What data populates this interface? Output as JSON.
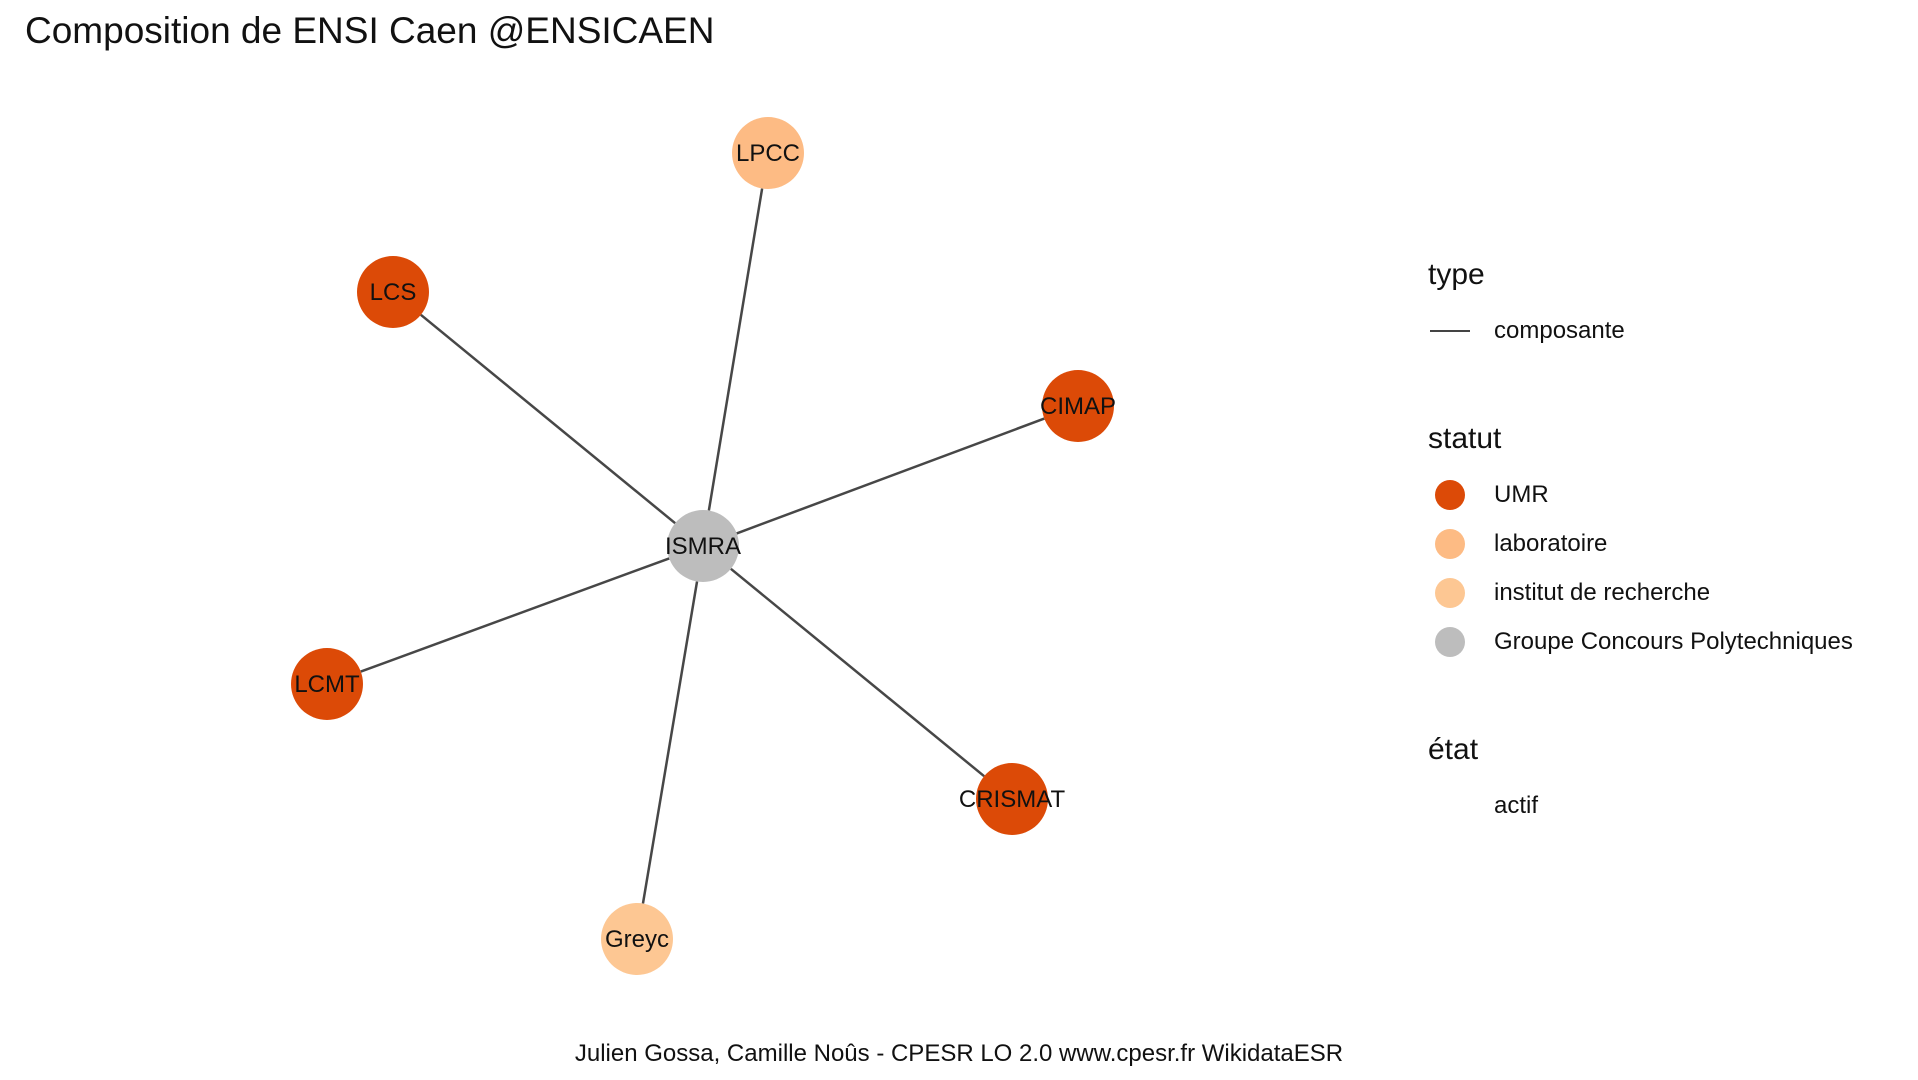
{
  "title": "Composition de ENSI Caen @ENSICAEN",
  "caption": "Julien Gossa, Camille Noûs - CPESR LO 2.0 www.cpesr.fr WikidataESR",
  "colors": {
    "UMR": "#dc4a07",
    "laboratoire": "#fdbb84",
    "institut de recherche": "#fdc793",
    "Groupe Concours Polytechniques": "#bdbdbd",
    "edge": "#474747"
  },
  "graph": {
    "nodes": [
      {
        "id": "ISMRA",
        "label": "ISMRA",
        "statut": "Groupe Concours Polytechniques"
      },
      {
        "id": "LPCC",
        "label": "LPCC",
        "statut": "laboratoire"
      },
      {
        "id": "LCS",
        "label": "LCS",
        "statut": "UMR"
      },
      {
        "id": "CIMAP",
        "label": "CIMAP",
        "statut": "UMR"
      },
      {
        "id": "LCMT",
        "label": "LCMT",
        "statut": "UMR"
      },
      {
        "id": "CRISMAT",
        "label": "CRISMAT",
        "statut": "UMR"
      },
      {
        "id": "Greyc",
        "label": "Greyc",
        "statut": "institut de recherche"
      }
    ],
    "edges": [
      {
        "source": "ISMRA",
        "target": "LPCC",
        "type": "composante"
      },
      {
        "source": "ISMRA",
        "target": "LCS",
        "type": "composante"
      },
      {
        "source": "ISMRA",
        "target": "CIMAP",
        "type": "composante"
      },
      {
        "source": "ISMRA",
        "target": "LCMT",
        "type": "composante"
      },
      {
        "source": "ISMRA",
        "target": "CRISMAT",
        "type": "composante"
      },
      {
        "source": "ISMRA",
        "target": "Greyc",
        "type": "composante"
      }
    ]
  },
  "legend": {
    "type": {
      "title": "type",
      "items": [
        "composante"
      ]
    },
    "statut": {
      "title": "statut",
      "items": [
        "UMR",
        "laboratoire",
        "institut de recherche",
        "Groupe Concours Polytechniques"
      ]
    },
    "etat": {
      "title": "état",
      "items": [
        "actif"
      ]
    }
  }
}
